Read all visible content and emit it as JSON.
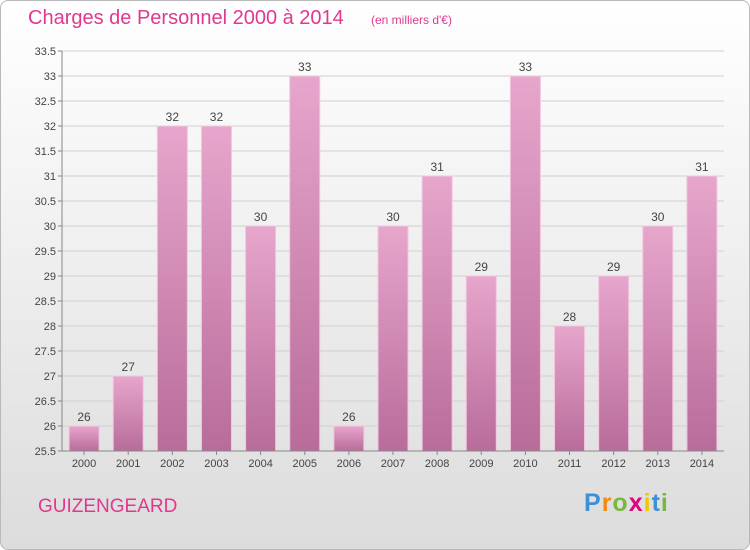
{
  "title": "Charges de Personnel 2000 à 2014",
  "subtitle": "(en milliers d'€)",
  "commune": "GUIZENGEARD",
  "logo": {
    "text": "Proxiti"
  },
  "colors": {
    "title": "#e0388f",
    "bar_top": "#e7a6cc",
    "bar_bottom": "#b86c9a",
    "grid": "#d0d0d0"
  },
  "chart_data": {
    "type": "bar",
    "categories": [
      "2000",
      "2001",
      "2002",
      "2003",
      "2004",
      "2005",
      "2006",
      "2007",
      "2008",
      "2009",
      "2010",
      "2011",
      "2012",
      "2013",
      "2014"
    ],
    "values": [
      26,
      27,
      32,
      32,
      30,
      33,
      26,
      30,
      31,
      29,
      33,
      28,
      29,
      30,
      31
    ],
    "ylim": [
      25.5,
      33.5
    ],
    "yticks": [
      25.5,
      26,
      26.5,
      27,
      27.5,
      28,
      28.5,
      29,
      29.5,
      30,
      30.5,
      31,
      31.5,
      32,
      32.5,
      33,
      33.5
    ],
    "ytick_labels": [
      "25.5",
      "26",
      "26.5",
      "27",
      "27.5",
      "28",
      "28.5",
      "29",
      "29.5",
      "30",
      "30.5",
      "31",
      "31.5",
      "32",
      "32.5",
      "33",
      "33.5"
    ],
    "data_labels": [
      "26",
      "27",
      "32",
      "32",
      "30",
      "33",
      "26",
      "30",
      "31",
      "29",
      "33",
      "28",
      "29",
      "30",
      "31"
    ],
    "grid": true
  }
}
